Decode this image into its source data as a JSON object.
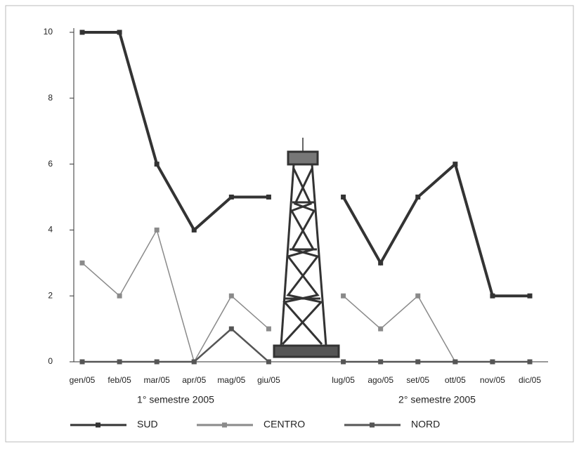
{
  "chart_data": {
    "type": "line",
    "categories": [
      "gen/05",
      "feb/05",
      "mar/05",
      "apr/05",
      "mag/05",
      "giu/05",
      null,
      "lug/05",
      "ago/05",
      "set/05",
      "ott/05",
      "nov/05",
      "dic/05"
    ],
    "series": [
      {
        "name": "SUD",
        "color": "#333333",
        "values": [
          10,
          10,
          6,
          4,
          5,
          5,
          null,
          5,
          3,
          5,
          6,
          2,
          2
        ]
      },
      {
        "name": "CENTRO",
        "color": "#8a8a8a",
        "values": [
          3,
          2,
          4,
          0,
          2,
          1,
          null,
          2,
          1,
          2,
          0,
          0,
          0
        ]
      },
      {
        "name": "NORD",
        "color": "#555555",
        "values": [
          0,
          0,
          0,
          0,
          1,
          0,
          null,
          0,
          0,
          0,
          0,
          0,
          0
        ]
      }
    ],
    "annotations": [
      "1° semestre 2005",
      "2° semestre 2005"
    ],
    "ylim": [
      0,
      10
    ],
    "yticks": [
      0,
      2,
      4,
      6,
      8,
      10
    ],
    "grid": false,
    "legend": "bottom"
  }
}
